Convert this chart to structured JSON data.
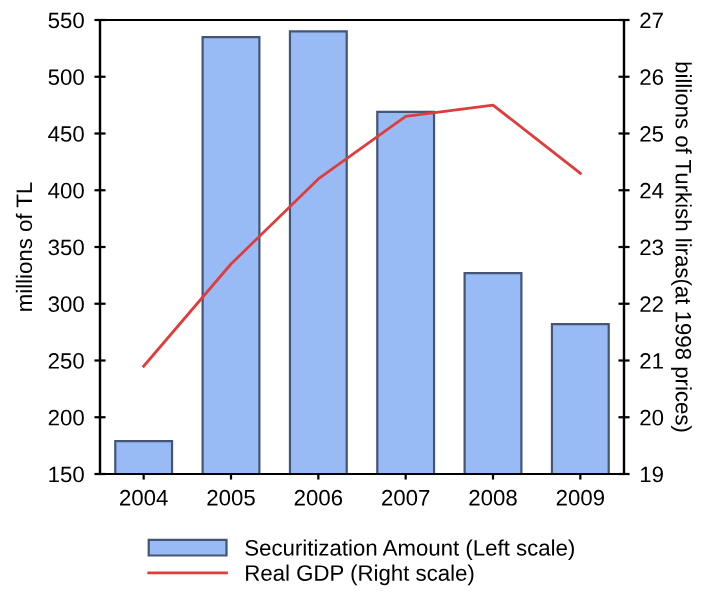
{
  "chart_data": {
    "type": "bar",
    "categories": [
      "2004",
      "2005",
      "2006",
      "2007",
      "2008",
      "2009"
    ],
    "ylabel": "millions of TL",
    "y2label": "billions of Turkish liras(at 1998 prices)",
    "series": [
      {
        "name": "Securitization Amount (Left scale)",
        "color": "#99bbf5",
        "values": [
          179,
          535,
          540,
          469,
          327,
          282
        ]
      },
      {
        "name": "Real GDP (Right scale)",
        "type": "line",
        "axis": "y2",
        "color": "#e03c3c",
        "values": [
          20.9,
          22.7,
          24.2,
          25.3,
          25.5,
          24.3
        ]
      }
    ],
    "ylim": [
      150,
      550
    ],
    "yticks": [
      150,
      200,
      250,
      300,
      350,
      400,
      450,
      500,
      550
    ],
    "y2lim": [
      19,
      27
    ],
    "y2ticks": [
      19,
      20,
      21,
      22,
      23,
      24,
      25,
      26,
      27
    ],
    "grid": false,
    "legend": "bottom"
  }
}
